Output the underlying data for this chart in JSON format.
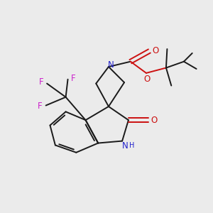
{
  "background_color": "#ebebeb",
  "bond_color": "#1a1a1a",
  "N_color": "#2222cc",
  "O_color": "#cc1111",
  "F_color": "#cc22cc",
  "figsize": [
    3.0,
    3.0
  ],
  "dpi": 100,
  "xlim": [
    0,
    10
  ],
  "ylim": [
    0,
    10
  ],
  "lw": 1.4
}
